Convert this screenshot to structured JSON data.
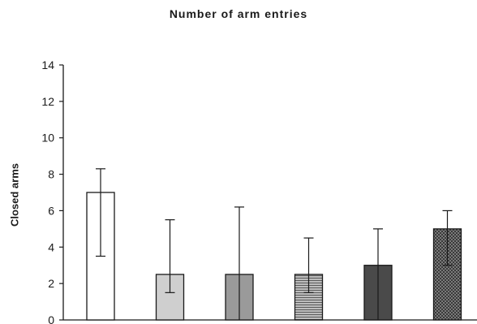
{
  "chart_data": {
    "type": "bar",
    "title": "Number of arm entries",
    "ylabel": "Closed arms",
    "xlabel": "",
    "ylim": [
      0,
      14
    ],
    "yticks": [
      0,
      2,
      4,
      6,
      8,
      10,
      12,
      14
    ],
    "grid": false,
    "values": [
      7.0,
      2.5,
      2.5,
      2.5,
      3.0,
      5.0
    ],
    "error_low": [
      3.5,
      1.5,
      0.0,
      1.5,
      0.0,
      3.0
    ],
    "error_high": [
      8.3,
      5.5,
      6.2,
      4.5,
      5.0,
      6.0
    ],
    "fills": [
      "white",
      "light-gray",
      "medium-gray",
      "fine-stripes",
      "dark-gray",
      "checkered"
    ]
  },
  "colors": {
    "axis": "#1a1a1a",
    "white": "#ffffff",
    "light-gray": "#cfcfcf",
    "medium-gray": "#9a9a9a",
    "dark-gray": "#4a4a4a"
  }
}
